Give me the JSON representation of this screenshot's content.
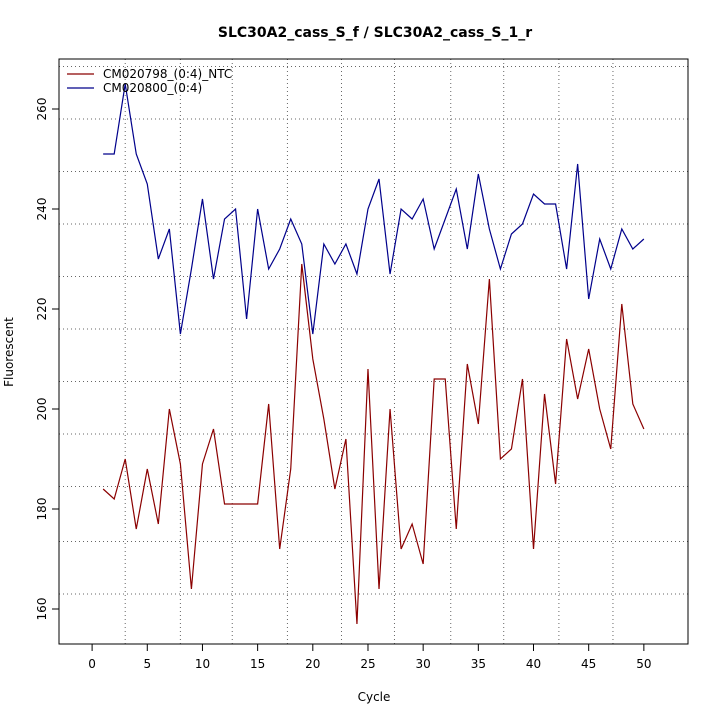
{
  "chart_data": {
    "type": "line",
    "title": "SLC30A2_cass_S_f / SLC30A2_cass_S_1_r",
    "xlabel": "Cycle",
    "ylabel": "Fluorescent",
    "xlim": [
      -3,
      54
    ],
    "ylim": [
      153,
      270
    ],
    "xticks": [
      0,
      5,
      10,
      15,
      20,
      25,
      30,
      35,
      40,
      45,
      50
    ],
    "yticks": [
      160,
      180,
      200,
      220,
      240,
      260
    ],
    "grid_x": [
      3,
      8,
      12.7,
      17.7,
      22.6,
      27.4,
      32.5,
      37.3,
      42.3,
      47.2
    ],
    "grid_y": [
      163,
      173.5,
      184.5,
      195,
      205.5,
      216,
      226.5,
      237,
      247.5,
      258,
      268.5
    ],
    "legend_position": "top-left",
    "x": [
      1,
      2,
      3,
      4,
      5,
      6,
      7,
      8,
      9,
      10,
      11,
      12,
      13,
      14,
      15,
      16,
      17,
      18,
      19,
      20,
      21,
      22,
      23,
      24,
      25,
      26,
      27,
      28,
      29,
      30,
      31,
      32,
      33,
      34,
      35,
      36,
      37,
      38,
      39,
      40,
      41,
      42,
      43,
      44,
      45,
      46,
      47,
      48,
      49,
      50
    ],
    "series": [
      {
        "name": "CM020798_(0:4)_NTC",
        "color": "#8b0000",
        "values": [
          184,
          182,
          190,
          176,
          188,
          177,
          200,
          189,
          164,
          189,
          196,
          181,
          181,
          181,
          181,
          201,
          172,
          188,
          229,
          210,
          198,
          184,
          194,
          157,
          208,
          164,
          200,
          172,
          177,
          169,
          206,
          206,
          176,
          209,
          197,
          226,
          190,
          192,
          206,
          172,
          203,
          185,
          214,
          202,
          212,
          200,
          192,
          221,
          201,
          196
        ]
      },
      {
        "name": "CM020800_(0:4)",
        "color": "#00008b",
        "values": [
          251,
          251,
          265,
          251,
          245,
          230,
          236,
          215,
          228,
          242,
          226,
          238,
          240,
          218,
          240,
          228,
          232,
          238,
          233,
          215,
          233,
          229,
          233,
          227,
          240,
          246,
          227,
          240,
          238,
          242,
          232,
          238,
          244,
          232,
          247,
          236,
          228,
          235,
          237,
          243,
          241,
          241,
          228,
          249,
          222,
          234,
          228,
          236,
          232,
          234
        ]
      }
    ]
  }
}
